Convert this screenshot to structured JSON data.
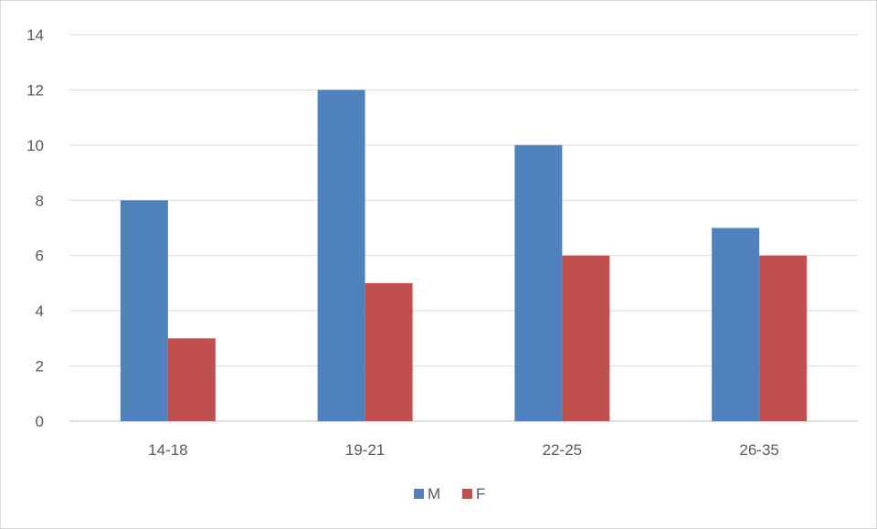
{
  "chart_data": {
    "type": "bar",
    "categories": [
      "14-18",
      "19-21",
      "22-25",
      "26-35"
    ],
    "series": [
      {
        "name": "M",
        "values": [
          8,
          12,
          10,
          7
        ],
        "color": "#4f81bd"
      },
      {
        "name": "F",
        "values": [
          3,
          5,
          6,
          6
        ],
        "color": "#c0504d"
      }
    ],
    "ylim": [
      0,
      14
    ],
    "yticks": [
      0,
      2,
      4,
      6,
      8,
      10,
      12,
      14
    ],
    "grid": true,
    "legend": "bottom",
    "title": "",
    "xlabel": "",
    "ylabel": ""
  }
}
